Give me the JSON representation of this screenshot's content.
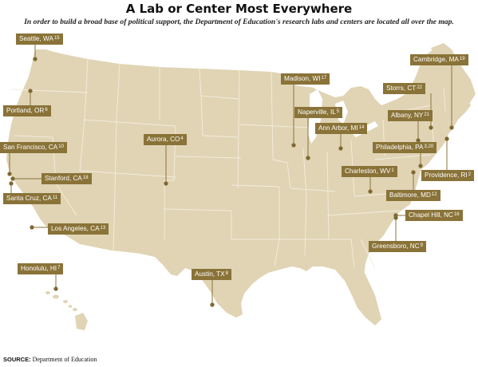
{
  "title": "A Lab or Center Most Everywhere",
  "subtitle": "In order to build a broad base of political support, the Department of Education's research labs and centers are located all over the map.",
  "source": {
    "label": "SOURCE:",
    "text": "Department of Education"
  },
  "colors": {
    "land": "#e0d4b5",
    "state_lines": "#f2ebda",
    "callout": "#8a7338",
    "leader": "#8a7338",
    "dot": "#7a6430"
  },
  "locations": [
    {
      "id": "seattle",
      "label": "Seattle, WA",
      "count": "15"
    },
    {
      "id": "portland",
      "label": "Portland, OR",
      "count": "6"
    },
    {
      "id": "sanfrancisco",
      "label": "San Francisco, CA",
      "count": "10"
    },
    {
      "id": "stanford",
      "label": "Stanford, CA",
      "count": "18"
    },
    {
      "id": "santacruz",
      "label": "Santa Cruz, CA",
      "count": "11"
    },
    {
      "id": "losangeles",
      "label": "Los Angeles, CA",
      "count": "13"
    },
    {
      "id": "honolulu",
      "label": "Honolulu, HI",
      "count": "7"
    },
    {
      "id": "aurora",
      "label": "Aurora, CO",
      "count": "4"
    },
    {
      "id": "austin",
      "label": "Austin, TX",
      "count": "8"
    },
    {
      "id": "madison",
      "label": "Madison, WI",
      "count": "17"
    },
    {
      "id": "naperville",
      "label": "Naperville, IL",
      "count": "5"
    },
    {
      "id": "annarbor",
      "label": "Ann Arbor, MI",
      "count": "14"
    },
    {
      "id": "charleston",
      "label": "Charleston, WV",
      "count": "1"
    },
    {
      "id": "cambridge",
      "label": "Cambridge, MA",
      "count": "19"
    },
    {
      "id": "storrs",
      "label": "Storrs, CT",
      "count": "22"
    },
    {
      "id": "albany",
      "label": "Albany, NY",
      "count": "21"
    },
    {
      "id": "philadelphia",
      "label": "Philadelphia, PA",
      "count": "3,20"
    },
    {
      "id": "providence",
      "label": "Providence, RI",
      "count": "2"
    },
    {
      "id": "baltimore",
      "label": "Baltimore, MD",
      "count": "12"
    },
    {
      "id": "chapelhill",
      "label": "Chapel Hill, NC",
      "count": "16"
    },
    {
      "id": "greensboro",
      "label": "Greensboro, NC",
      "count": "9"
    }
  ]
}
